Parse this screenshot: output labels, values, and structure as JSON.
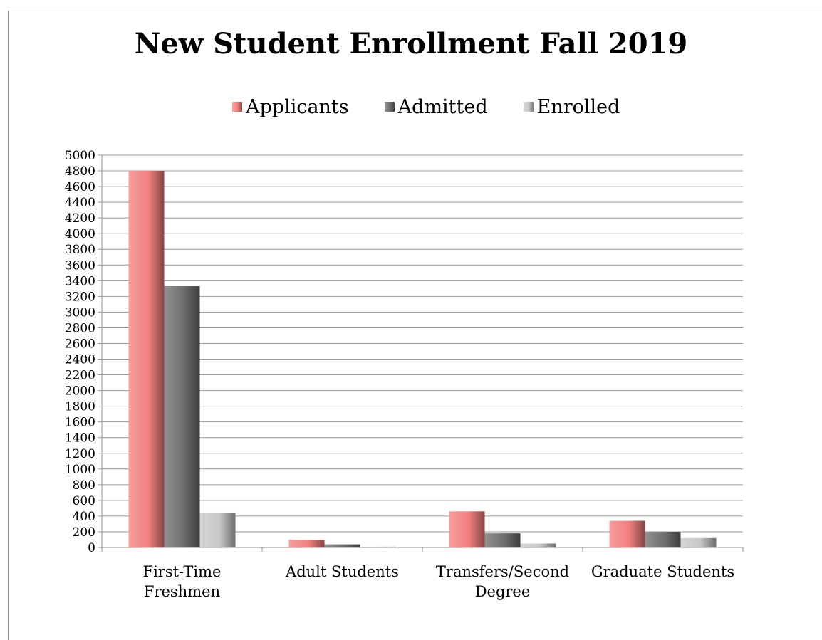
{
  "chart_data": {
    "type": "bar",
    "title": "New Student Enrollment Fall 2019",
    "xlabel": "",
    "ylabel": "",
    "ylim": [
      0,
      5000
    ],
    "ytick_step": 200,
    "grid": true,
    "legend_position": "top",
    "categories": [
      [
        "First-Time",
        "Freshmen"
      ],
      [
        "Adult Students"
      ],
      [
        "Transfers/Second",
        "Degree"
      ],
      [
        "Graduate Students"
      ]
    ],
    "series": [
      {
        "name": "Applicants",
        "color": "#f28080",
        "values": [
          4800,
          100,
          460,
          340
        ]
      },
      {
        "name": "Admitted",
        "color": "#6e6e6e",
        "values": [
          3330,
          40,
          180,
          200
        ]
      },
      {
        "name": "Enrolled",
        "color": "#c8c8c8",
        "values": [
          445,
          10,
          50,
          120
        ]
      }
    ]
  }
}
